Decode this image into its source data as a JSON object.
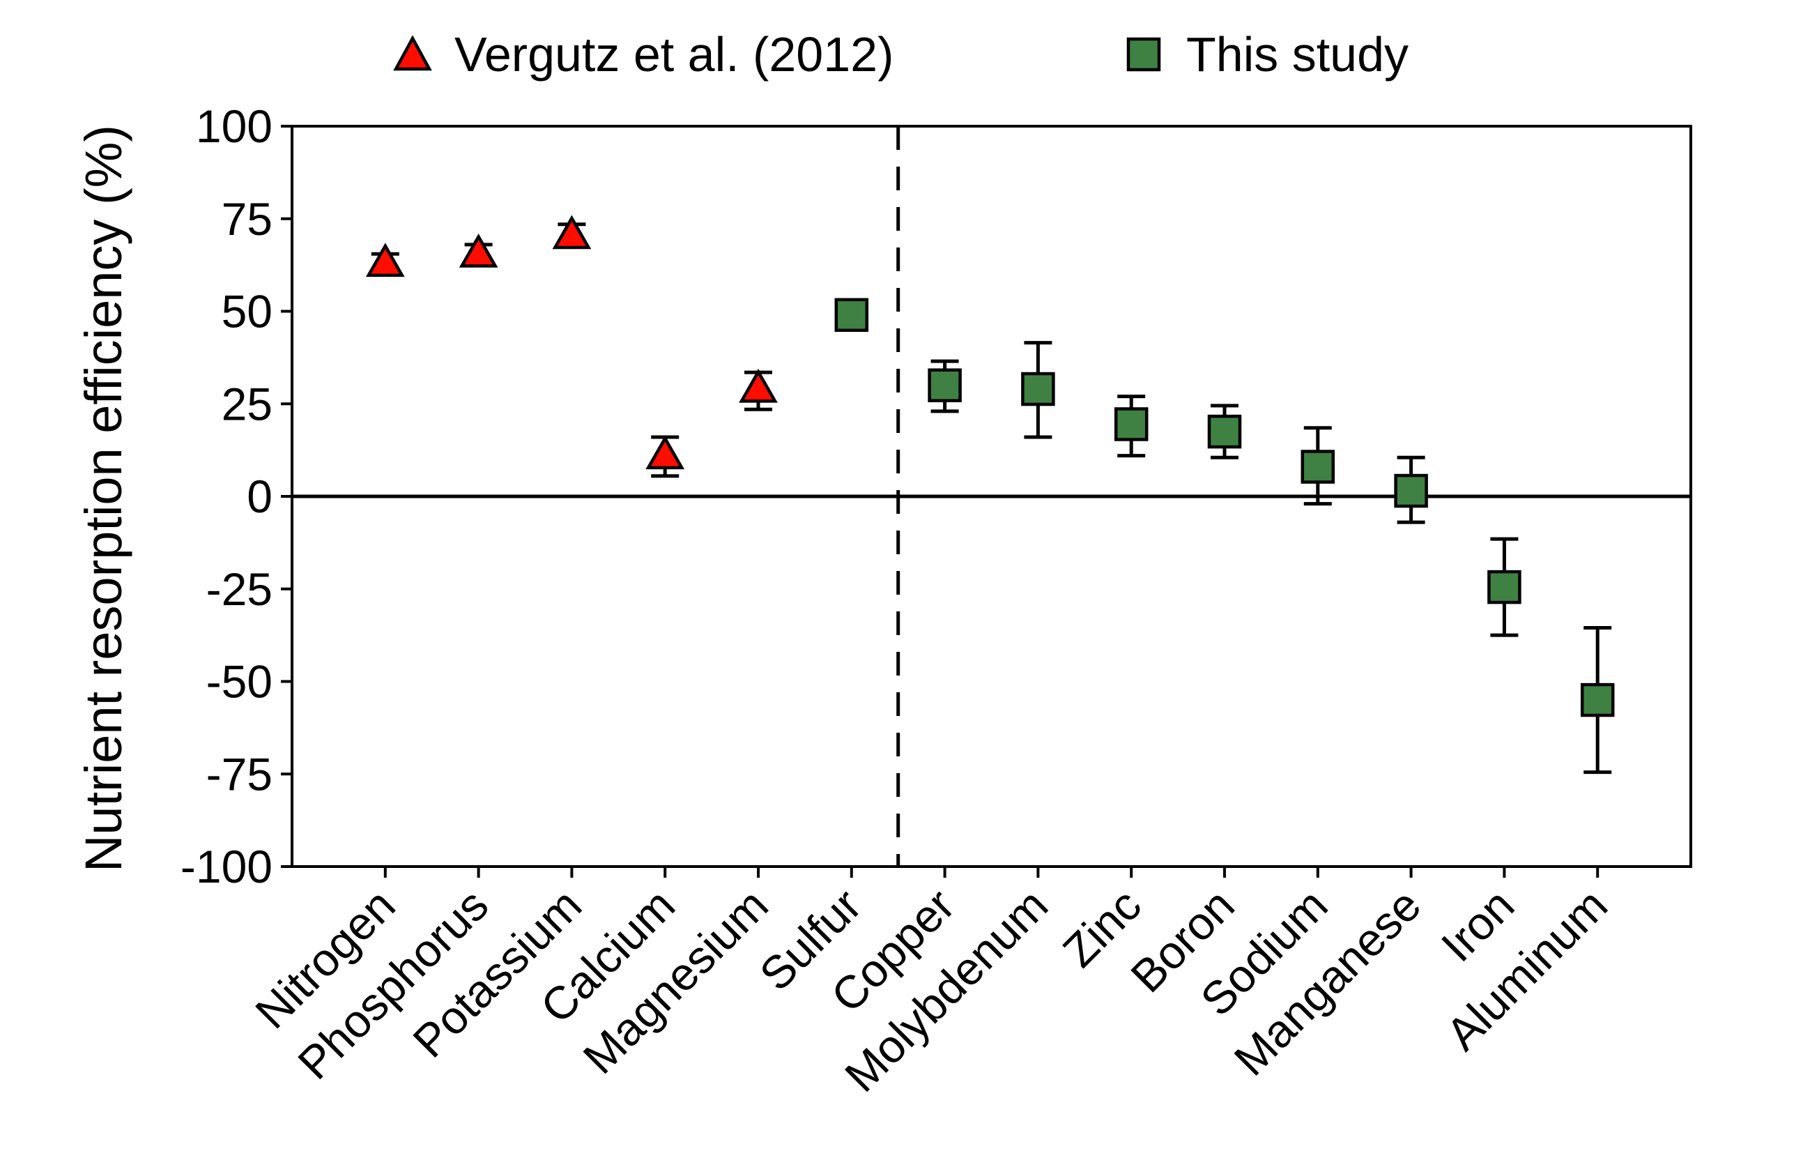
{
  "chart_data": {
    "type": "scatter",
    "title": "",
    "ylabel": "Nutrient resorption efficiency (%)",
    "xlabel": "",
    "ylim": [
      -100,
      100
    ],
    "yticks": [
      100,
      75,
      50,
      25,
      0,
      -25,
      -50,
      -75,
      -100
    ],
    "categories": [
      "Nitrogen",
      "Phosphorus",
      "Potassium",
      "Calcium",
      "Magnesium",
      "Sulfur",
      "Copper",
      "Molybdenum",
      "Zinc",
      "Boron",
      "Sodium",
      "Manganese",
      "Iron",
      "Aluminum"
    ],
    "zero_line": true,
    "grid": false,
    "divider_between": [
      "Sulfur",
      "Copper"
    ],
    "divider_style": "dashed-vertical",
    "legend_position": "top",
    "colors": {
      "vergutz_marker": "#ff0d00",
      "this_study_marker": "#3f8142",
      "axis_and_text": "#000000",
      "background": "#ffffff"
    },
    "series": [
      {
        "name": "Vergutz et al. (2012)",
        "marker": "triangle",
        "color": "#ff0d00",
        "points": [
          {
            "category": "Nitrogen",
            "value": 63.5,
            "err_up": 2,
            "err_down": 2
          },
          {
            "category": "Phosphorus",
            "value": 66,
            "err_up": 2,
            "err_down": 2
          },
          {
            "category": "Potassium",
            "value": 71,
            "err_up": 2.5,
            "err_down": 3
          },
          {
            "category": "Calcium",
            "value": 11.5,
            "err_up": 4.5,
            "err_down": 6
          },
          {
            "category": "Magnesium",
            "value": 29.5,
            "err_up": 4,
            "err_down": 6
          }
        ]
      },
      {
        "name": "This study",
        "marker": "square",
        "color": "#3f8142",
        "points": [
          {
            "category": "Sulfur",
            "value": 49,
            "err_up": 0,
            "err_down": 0
          },
          {
            "category": "Copper",
            "value": 30,
            "err_up": 6.5,
            "err_down": 7
          },
          {
            "category": "Molybdenum",
            "value": 29,
            "err_up": 12.5,
            "err_down": 13
          },
          {
            "category": "Zinc",
            "value": 19.5,
            "err_up": 7.5,
            "err_down": 8.5
          },
          {
            "category": "Boron",
            "value": 17.5,
            "err_up": 7,
            "err_down": 7
          },
          {
            "category": "Sodium",
            "value": 8,
            "err_up": 10.5,
            "err_down": 10
          },
          {
            "category": "Manganese",
            "value": 1.5,
            "err_up": 9,
            "err_down": 8.5
          },
          {
            "category": "Iron",
            "value": -24.5,
            "err_up": 13,
            "err_down": 13
          },
          {
            "category": "Aluminum",
            "value": -55,
            "err_up": 19.5,
            "err_down": 19.5
          }
        ]
      }
    ]
  }
}
